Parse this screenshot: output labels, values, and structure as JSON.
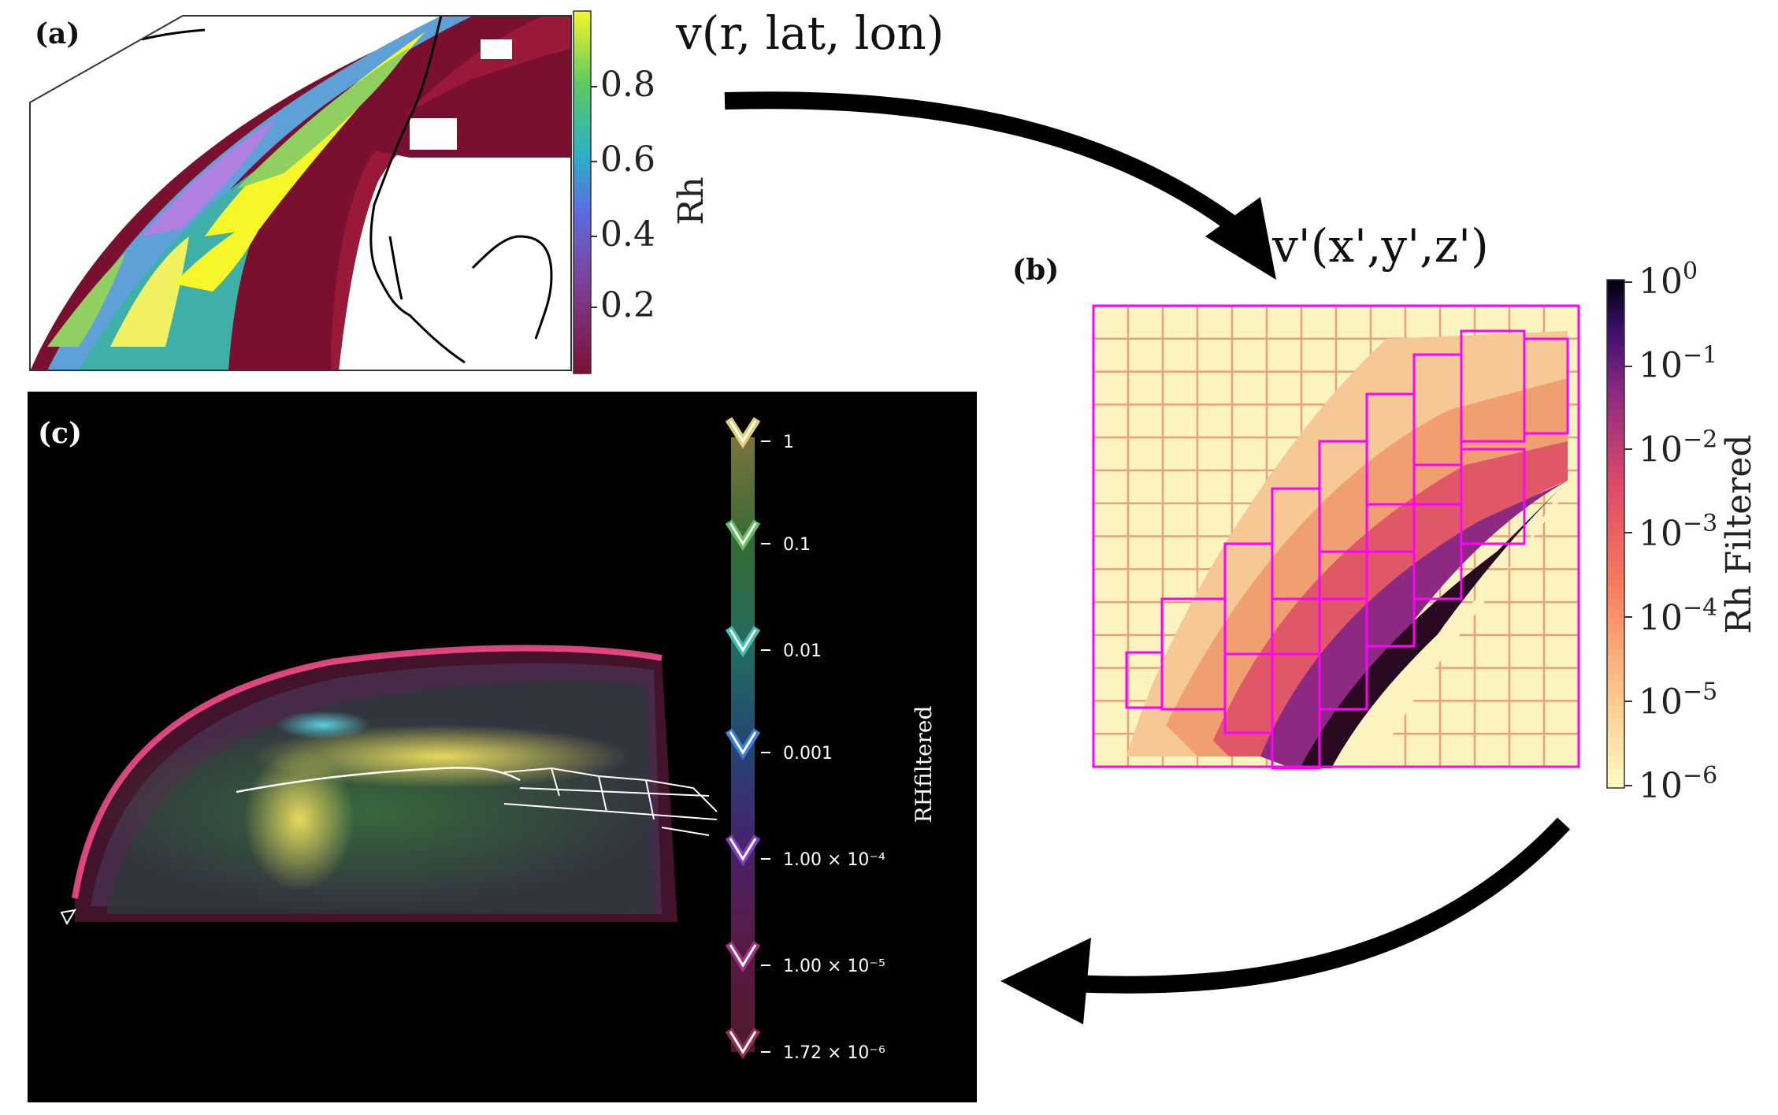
{
  "panels": {
    "a": {
      "label": "(a)",
      "cbar_label": "Rh",
      "cbar_ticks": [
        "0.8",
        "0.6",
        "0.4",
        "0.2"
      ]
    },
    "b": {
      "label": "(b)",
      "cbar_label": "Rh Filtered",
      "cbar_ticks": [
        {
          "base": "10",
          "exp": "0"
        },
        {
          "base": "10",
          "exp": "−1"
        },
        {
          "base": "10",
          "exp": "−2"
        },
        {
          "base": "10",
          "exp": "−3"
        },
        {
          "base": "10",
          "exp": "−4"
        },
        {
          "base": "10",
          "exp": "−5"
        },
        {
          "base": "10",
          "exp": "−6"
        }
      ]
    },
    "c": {
      "label": "(c)",
      "cbar_label": "RHfiltered",
      "tf_ticks": [
        "1",
        "0.1",
        "0.01",
        "0.001",
        "1.00 × 10⁻⁴",
        "1.00 × 10⁻⁵",
        "1.72 × 10⁻⁶"
      ]
    }
  },
  "arrow_labels": {
    "top": "v(r, lat, lon)",
    "right": "v'(x',y',z')"
  },
  "colors": {
    "viridis": [
      "#440154",
      "#3b528b",
      "#21918c",
      "#5ec962",
      "#fde725"
    ],
    "magma_r": [
      "#fcfdbf",
      "#fec287",
      "#f97b5d",
      "#de4968",
      "#8c2981",
      "#3b0f70",
      "#000004"
    ],
    "grid_fine": "#e8a0a0",
    "grid_coarse": "#ff00ff"
  }
}
